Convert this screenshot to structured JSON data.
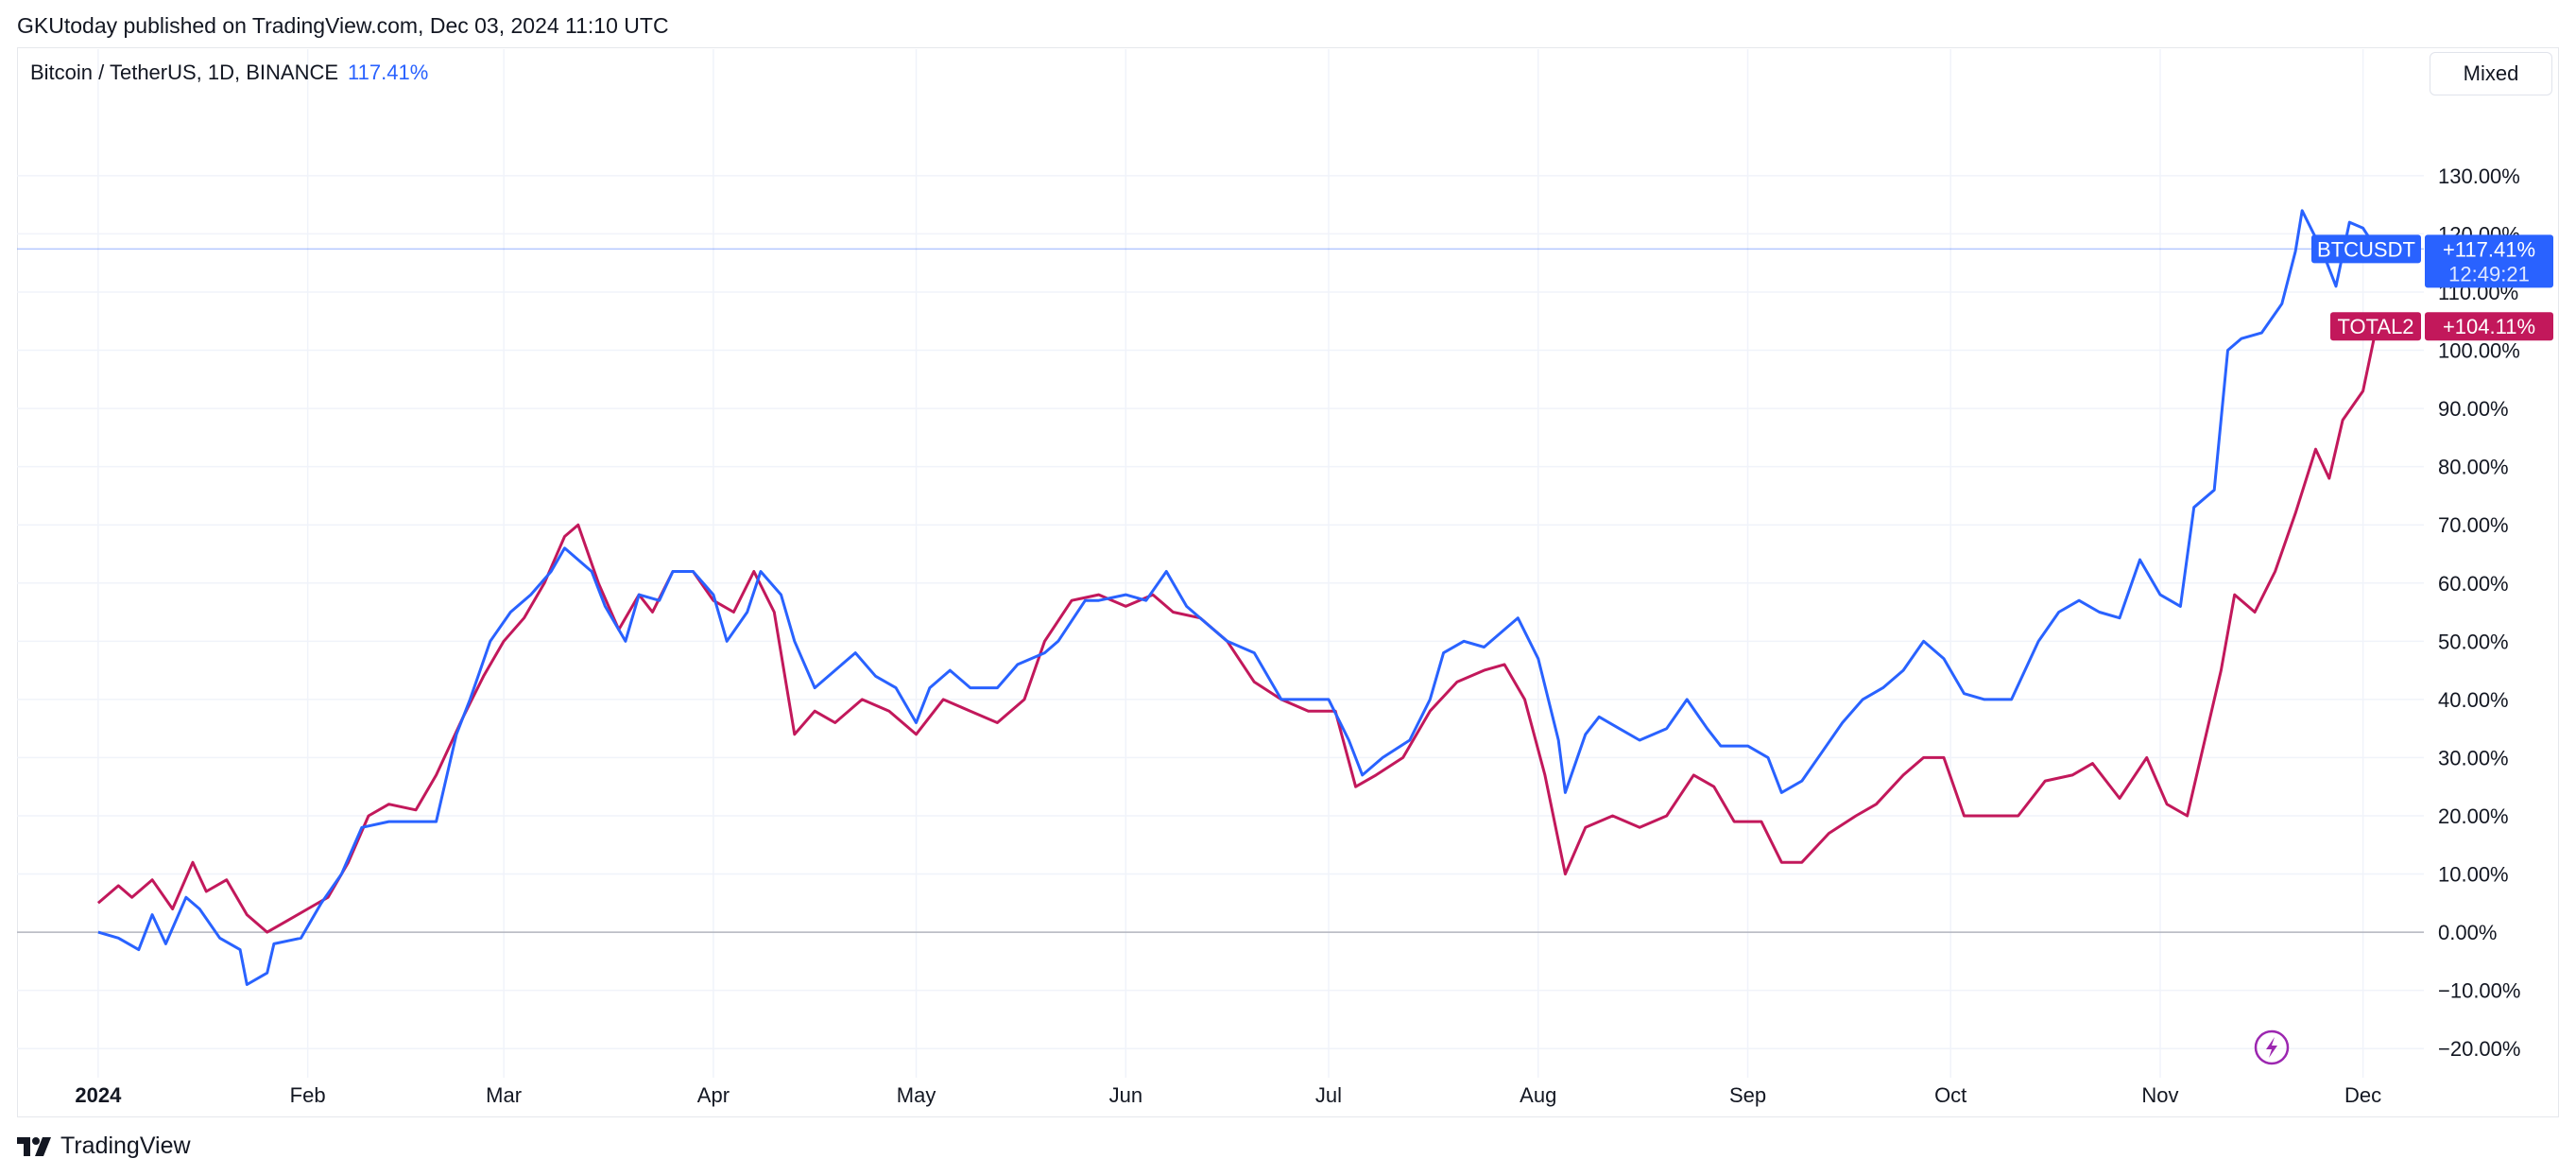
{
  "header": {
    "published": "GKUtoday published on TradingView.com, Dec 03, 2024 11:10 UTC"
  },
  "legend": {
    "title": "Bitcoin / TetherUS, 1D, BINANCE",
    "value": "117.41%"
  },
  "toolbar": {
    "scale_mode": "Mixed"
  },
  "footer": {
    "brand": "TradingView"
  },
  "colors": {
    "btc": "#2962ff",
    "total2": "#c2185b",
    "grid": "#f0f3fa",
    "zero_line": "#b2b5be",
    "flash_icon": "#9c27b0"
  },
  "icons": {
    "flash": "lightning-bolt-icon",
    "logo": "tradingview-logo-icon"
  },
  "chart_data": {
    "type": "line",
    "x_axis": {
      "range": [
        "2023-12-20",
        "2024-12-10"
      ],
      "tick_labels": [
        {
          "date": "2024-01-01",
          "label": "2024",
          "bold": true
        },
        {
          "date": "2024-02-01",
          "label": "Feb"
        },
        {
          "date": "2024-03-01",
          "label": "Mar"
        },
        {
          "date": "2024-04-01",
          "label": "Apr"
        },
        {
          "date": "2024-05-01",
          "label": "May"
        },
        {
          "date": "2024-06-01",
          "label": "Jun"
        },
        {
          "date": "2024-07-01",
          "label": "Jul"
        },
        {
          "date": "2024-08-01",
          "label": "Aug"
        },
        {
          "date": "2024-09-01",
          "label": "Sep"
        },
        {
          "date": "2024-10-01",
          "label": "Oct"
        },
        {
          "date": "2024-11-01",
          "label": "Nov"
        },
        {
          "date": "2024-12-01",
          "label": "Dec"
        }
      ]
    },
    "y_axis": {
      "unit": "%",
      "range": [
        -25,
        142
      ],
      "ticks": [
        -20,
        -10,
        0,
        10,
        20,
        30,
        40,
        50,
        60,
        70,
        80,
        90,
        100,
        110,
        120,
        130
      ],
      "tick_labels": [
        "−20.00%",
        "−10.00%",
        "0.00%",
        "10.00%",
        "20.00%",
        "30.00%",
        "40.00%",
        "50.00%",
        "60.00%",
        "70.00%",
        "80.00%",
        "90.00%",
        "100.00%",
        "110.00%",
        "120.00%",
        "130.00%"
      ]
    },
    "grid": true,
    "series": [
      {
        "name": "BTCUSDT",
        "color": "#2962ff",
        "last_value_label": "+117.41%",
        "countdown": "12:49:21",
        "last_value": 117.41,
        "points": [
          [
            "2024-01-01",
            0
          ],
          [
            "2024-01-04",
            -1
          ],
          [
            "2024-01-07",
            -3
          ],
          [
            "2024-01-09",
            3
          ],
          [
            "2024-01-11",
            -2
          ],
          [
            "2024-01-14",
            6
          ],
          [
            "2024-01-16",
            4
          ],
          [
            "2024-01-19",
            -1
          ],
          [
            "2024-01-22",
            -3
          ],
          [
            "2024-01-23",
            -9
          ],
          [
            "2024-01-26",
            -7
          ],
          [
            "2024-01-27",
            -2
          ],
          [
            "2024-01-31",
            -1
          ],
          [
            "2024-02-03",
            5
          ],
          [
            "2024-02-06",
            10
          ],
          [
            "2024-02-09",
            18
          ],
          [
            "2024-02-13",
            19
          ],
          [
            "2024-02-16",
            19
          ],
          [
            "2024-02-20",
            19
          ],
          [
            "2024-02-23",
            34
          ],
          [
            "2024-02-25",
            40
          ],
          [
            "2024-02-28",
            50
          ],
          [
            "2024-03-02",
            55
          ],
          [
            "2024-03-05",
            58
          ],
          [
            "2024-03-08",
            62
          ],
          [
            "2024-03-10",
            66
          ],
          [
            "2024-03-14",
            62
          ],
          [
            "2024-03-16",
            56
          ],
          [
            "2024-03-19",
            50
          ],
          [
            "2024-03-21",
            58
          ],
          [
            "2024-03-24",
            57
          ],
          [
            "2024-03-26",
            62
          ],
          [
            "2024-03-29",
            62
          ],
          [
            "2024-04-01",
            58
          ],
          [
            "2024-04-03",
            50
          ],
          [
            "2024-04-06",
            55
          ],
          [
            "2024-04-08",
            62
          ],
          [
            "2024-04-11",
            58
          ],
          [
            "2024-04-13",
            50
          ],
          [
            "2024-04-16",
            42
          ],
          [
            "2024-04-19",
            45
          ],
          [
            "2024-04-22",
            48
          ],
          [
            "2024-04-25",
            44
          ],
          [
            "2024-04-28",
            42
          ],
          [
            "2024-05-01",
            36
          ],
          [
            "2024-05-03",
            42
          ],
          [
            "2024-05-06",
            45
          ],
          [
            "2024-05-09",
            42
          ],
          [
            "2024-05-13",
            42
          ],
          [
            "2024-05-16",
            46
          ],
          [
            "2024-05-20",
            48
          ],
          [
            "2024-05-22",
            50
          ],
          [
            "2024-05-26",
            57
          ],
          [
            "2024-05-28",
            57
          ],
          [
            "2024-06-01",
            58
          ],
          [
            "2024-06-04",
            57
          ],
          [
            "2024-06-07",
            62
          ],
          [
            "2024-06-10",
            56
          ],
          [
            "2024-06-13",
            53
          ],
          [
            "2024-06-16",
            50
          ],
          [
            "2024-06-20",
            48
          ],
          [
            "2024-06-24",
            40
          ],
          [
            "2024-06-27",
            40
          ],
          [
            "2024-07-01",
            40
          ],
          [
            "2024-07-04",
            33
          ],
          [
            "2024-07-06",
            27
          ],
          [
            "2024-07-09",
            30
          ],
          [
            "2024-07-13",
            33
          ],
          [
            "2024-07-16",
            40
          ],
          [
            "2024-07-18",
            48
          ],
          [
            "2024-07-21",
            50
          ],
          [
            "2024-07-24",
            49
          ],
          [
            "2024-07-27",
            52
          ],
          [
            "2024-07-29",
            54
          ],
          [
            "2024-08-01",
            47
          ],
          [
            "2024-08-04",
            33
          ],
          [
            "2024-08-05",
            24
          ],
          [
            "2024-08-08",
            34
          ],
          [
            "2024-08-10",
            37
          ],
          [
            "2024-08-13",
            35
          ],
          [
            "2024-08-16",
            33
          ],
          [
            "2024-08-20",
            35
          ],
          [
            "2024-08-23",
            40
          ],
          [
            "2024-08-26",
            35
          ],
          [
            "2024-08-28",
            32
          ],
          [
            "2024-09-01",
            32
          ],
          [
            "2024-09-04",
            30
          ],
          [
            "2024-09-06",
            24
          ],
          [
            "2024-09-09",
            26
          ],
          [
            "2024-09-12",
            31
          ],
          [
            "2024-09-15",
            36
          ],
          [
            "2024-09-18",
            40
          ],
          [
            "2024-09-21",
            42
          ],
          [
            "2024-09-24",
            45
          ],
          [
            "2024-09-27",
            50
          ],
          [
            "2024-09-30",
            47
          ],
          [
            "2024-10-03",
            41
          ],
          [
            "2024-10-06",
            40
          ],
          [
            "2024-10-10",
            40
          ],
          [
            "2024-10-14",
            50
          ],
          [
            "2024-10-17",
            55
          ],
          [
            "2024-10-20",
            57
          ],
          [
            "2024-10-23",
            55
          ],
          [
            "2024-10-26",
            54
          ],
          [
            "2024-10-29",
            64
          ],
          [
            "2024-11-01",
            58
          ],
          [
            "2024-11-04",
            56
          ],
          [
            "2024-11-06",
            73
          ],
          [
            "2024-11-09",
            76
          ],
          [
            "2024-11-11",
            100
          ],
          [
            "2024-11-13",
            102
          ],
          [
            "2024-11-16",
            103
          ],
          [
            "2024-11-19",
            108
          ],
          [
            "2024-11-21",
            117
          ],
          [
            "2024-11-22",
            124
          ],
          [
            "2024-11-25",
            117
          ],
          [
            "2024-11-27",
            111
          ],
          [
            "2024-11-29",
            122
          ],
          [
            "2024-12-01",
            121
          ],
          [
            "2024-12-03",
            117.41
          ]
        ]
      },
      {
        "name": "TOTAL2",
        "color": "#c2185b",
        "last_value_label": "+104.11%",
        "last_value": 104.11,
        "points": [
          [
            "2024-01-01",
            5
          ],
          [
            "2024-01-04",
            8
          ],
          [
            "2024-01-06",
            6
          ],
          [
            "2024-01-09",
            9
          ],
          [
            "2024-01-12",
            4
          ],
          [
            "2024-01-15",
            12
          ],
          [
            "2024-01-17",
            7
          ],
          [
            "2024-01-20",
            9
          ],
          [
            "2024-01-23",
            3
          ],
          [
            "2024-01-26",
            0
          ],
          [
            "2024-01-29",
            2
          ],
          [
            "2024-02-01",
            4
          ],
          [
            "2024-02-04",
            6
          ],
          [
            "2024-02-07",
            12
          ],
          [
            "2024-02-10",
            20
          ],
          [
            "2024-02-13",
            22
          ],
          [
            "2024-02-17",
            21
          ],
          [
            "2024-02-20",
            27
          ],
          [
            "2024-02-24",
            37
          ],
          [
            "2024-02-27",
            44
          ],
          [
            "2024-03-01",
            50
          ],
          [
            "2024-03-04",
            54
          ],
          [
            "2024-03-07",
            60
          ],
          [
            "2024-03-10",
            68
          ],
          [
            "2024-03-12",
            70
          ],
          [
            "2024-03-15",
            60
          ],
          [
            "2024-03-18",
            52
          ],
          [
            "2024-03-21",
            58
          ],
          [
            "2024-03-23",
            55
          ],
          [
            "2024-03-26",
            62
          ],
          [
            "2024-03-29",
            62
          ],
          [
            "2024-04-01",
            57
          ],
          [
            "2024-04-04",
            55
          ],
          [
            "2024-04-07",
            62
          ],
          [
            "2024-04-10",
            55
          ],
          [
            "2024-04-13",
            34
          ],
          [
            "2024-04-16",
            38
          ],
          [
            "2024-04-19",
            36
          ],
          [
            "2024-04-23",
            40
          ],
          [
            "2024-04-27",
            38
          ],
          [
            "2024-05-01",
            34
          ],
          [
            "2024-05-05",
            40
          ],
          [
            "2024-05-09",
            38
          ],
          [
            "2024-05-13",
            36
          ],
          [
            "2024-05-17",
            40
          ],
          [
            "2024-05-20",
            50
          ],
          [
            "2024-05-24",
            57
          ],
          [
            "2024-05-28",
            58
          ],
          [
            "2024-06-01",
            56
          ],
          [
            "2024-06-05",
            58
          ],
          [
            "2024-06-08",
            55
          ],
          [
            "2024-06-12",
            54
          ],
          [
            "2024-06-16",
            50
          ],
          [
            "2024-06-20",
            43
          ],
          [
            "2024-06-24",
            40
          ],
          [
            "2024-06-28",
            38
          ],
          [
            "2024-07-02",
            38
          ],
          [
            "2024-07-05",
            25
          ],
          [
            "2024-07-08",
            27
          ],
          [
            "2024-07-12",
            30
          ],
          [
            "2024-07-16",
            38
          ],
          [
            "2024-07-20",
            43
          ],
          [
            "2024-07-24",
            45
          ],
          [
            "2024-07-27",
            46
          ],
          [
            "2024-07-30",
            40
          ],
          [
            "2024-08-02",
            27
          ],
          [
            "2024-08-05",
            10
          ],
          [
            "2024-08-08",
            18
          ],
          [
            "2024-08-12",
            20
          ],
          [
            "2024-08-16",
            18
          ],
          [
            "2024-08-20",
            20
          ],
          [
            "2024-08-24",
            27
          ],
          [
            "2024-08-27",
            25
          ],
          [
            "2024-08-30",
            19
          ],
          [
            "2024-09-03",
            19
          ],
          [
            "2024-09-06",
            12
          ],
          [
            "2024-09-09",
            12
          ],
          [
            "2024-09-13",
            17
          ],
          [
            "2024-09-17",
            20
          ],
          [
            "2024-09-20",
            22
          ],
          [
            "2024-09-24",
            27
          ],
          [
            "2024-09-27",
            30
          ],
          [
            "2024-09-30",
            30
          ],
          [
            "2024-10-03",
            20
          ],
          [
            "2024-10-07",
            20
          ],
          [
            "2024-10-11",
            20
          ],
          [
            "2024-10-15",
            26
          ],
          [
            "2024-10-19",
            27
          ],
          [
            "2024-10-22",
            29
          ],
          [
            "2024-10-26",
            23
          ],
          [
            "2024-10-30",
            30
          ],
          [
            "2024-11-02",
            22
          ],
          [
            "2024-11-05",
            20
          ],
          [
            "2024-11-07",
            30
          ],
          [
            "2024-11-10",
            45
          ],
          [
            "2024-11-12",
            58
          ],
          [
            "2024-11-15",
            55
          ],
          [
            "2024-11-18",
            62
          ],
          [
            "2024-11-21",
            72
          ],
          [
            "2024-11-24",
            83
          ],
          [
            "2024-11-26",
            78
          ],
          [
            "2024-11-28",
            88
          ],
          [
            "2024-12-01",
            93
          ],
          [
            "2024-12-03",
            104.11
          ]
        ]
      }
    ]
  }
}
